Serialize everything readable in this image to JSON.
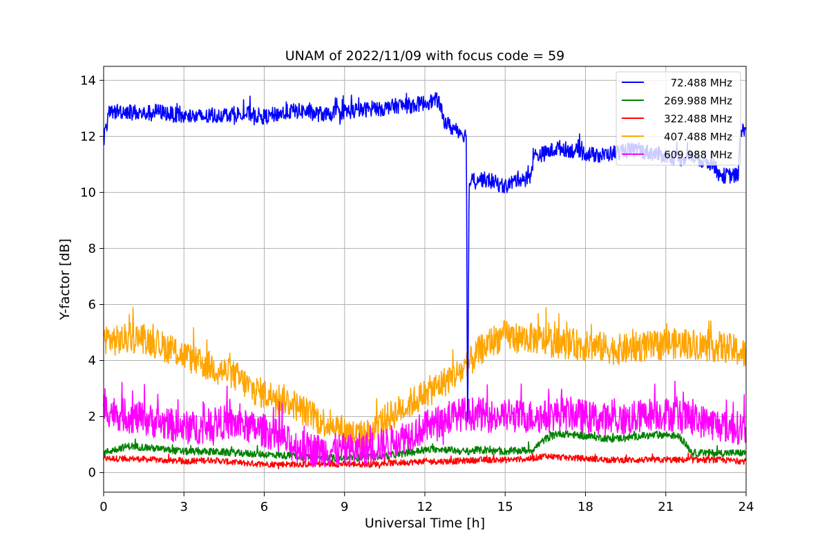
{
  "chart_data": {
    "type": "line",
    "title": "UNAM of 2022/11/09 with focus code = 59",
    "xlabel": "Universal Time [h]",
    "ylabel": "Y-factor [dB]",
    "xlim": [
      0,
      24
    ],
    "ylim": [
      -0.7,
      14.5
    ],
    "xticks": [
      0,
      3,
      6,
      9,
      12,
      15,
      18,
      21,
      24
    ],
    "yticks": [
      0,
      2,
      4,
      6,
      8,
      10,
      12,
      14
    ],
    "grid": true,
    "legend_position": "top-right",
    "series": [
      {
        "name": "72.488 MHz",
        "color": "#0000ff",
        "x": [
          0,
          0.2,
          0.5,
          1,
          1.5,
          2,
          2.5,
          3,
          3.5,
          4,
          4.5,
          5,
          5.5,
          6,
          6.5,
          7,
          7.5,
          8,
          8.5,
          9,
          9.5,
          10,
          10.5,
          11,
          11.5,
          12,
          12.5,
          12.7,
          13,
          13.3,
          13.55,
          13.6,
          13.65,
          13.7,
          14,
          14.5,
          15,
          15.5,
          15.9,
          16.1,
          16.5,
          17,
          17.5,
          18,
          18.5,
          19,
          19.5,
          20,
          20.5,
          21,
          21.5,
          22,
          22.5,
          22.8,
          23,
          23.5,
          23.7,
          23.8,
          24
        ],
        "y": [
          11.9,
          12.8,
          12.9,
          12.9,
          12.8,
          12.9,
          12.8,
          12.7,
          12.7,
          12.7,
          12.8,
          12.8,
          12.8,
          12.7,
          12.8,
          12.9,
          12.9,
          12.8,
          12.8,
          12.9,
          12.9,
          13.0,
          13.0,
          13.1,
          13.1,
          13.2,
          13.3,
          12.6,
          12.3,
          12.2,
          12.0,
          0.8,
          10.3,
          10.4,
          10.5,
          10.4,
          10.2,
          10.5,
          10.5,
          11.3,
          11.4,
          11.6,
          11.5,
          11.4,
          11.3,
          11.4,
          11.5,
          11.5,
          11.4,
          11.3,
          11.2,
          11.3,
          11.1,
          11.0,
          10.6,
          10.6,
          10.6,
          12.1,
          12.4
        ]
      },
      {
        "name": "269.988 MHz",
        "color": "#008000",
        "x": [
          0,
          0.5,
          1,
          1.5,
          2,
          3,
          4,
          5,
          6,
          7,
          8,
          9,
          10,
          11,
          12,
          12.5,
          13,
          13.5,
          14,
          15,
          16,
          16.5,
          17,
          18,
          19,
          20,
          21,
          21.5,
          22,
          23,
          24
        ],
        "y": [
          0.7,
          0.85,
          0.95,
          0.9,
          0.85,
          0.75,
          0.75,
          0.7,
          0.65,
          0.6,
          0.55,
          0.5,
          0.55,
          0.65,
          0.8,
          0.85,
          0.8,
          0.75,
          0.8,
          0.75,
          0.8,
          1.2,
          1.4,
          1.3,
          1.2,
          1.3,
          1.35,
          1.3,
          0.7,
          0.7,
          0.7
        ]
      },
      {
        "name": "322.488 MHz",
        "color": "#ff0000",
        "x": [
          0,
          1,
          2,
          3,
          4,
          5,
          6,
          7,
          8,
          9,
          10,
          11,
          12,
          13,
          14,
          15,
          16,
          16.5,
          17,
          18,
          19,
          20,
          21,
          22,
          23,
          24
        ],
        "y": [
          0.5,
          0.5,
          0.45,
          0.4,
          0.45,
          0.35,
          0.3,
          0.3,
          0.3,
          0.3,
          0.3,
          0.35,
          0.4,
          0.4,
          0.45,
          0.45,
          0.5,
          0.6,
          0.55,
          0.5,
          0.45,
          0.45,
          0.45,
          0.45,
          0.45,
          0.4
        ]
      },
      {
        "name": "407.488 MHz",
        "color": "#ffa500",
        "x": [
          0,
          0.5,
          1,
          1.5,
          2,
          2.5,
          3,
          3.5,
          4,
          4.5,
          5,
          5.5,
          6,
          6.5,
          7,
          7.5,
          8,
          8.5,
          9,
          9.5,
          10,
          10.5,
          11,
          11.5,
          12,
          12.5,
          13,
          13.5,
          14,
          14.5,
          15,
          15.5,
          16,
          16.5,
          17,
          17.5,
          18,
          18.5,
          19,
          19.5,
          20,
          20.5,
          21,
          21.5,
          22,
          22.5,
          23,
          23.5,
          24
        ],
        "y": [
          4.8,
          4.7,
          4.8,
          4.8,
          4.6,
          4.4,
          4.2,
          3.9,
          3.8,
          3.6,
          3.4,
          3.0,
          2.8,
          2.7,
          2.5,
          2.2,
          1.9,
          1.7,
          1.5,
          1.3,
          1.4,
          1.9,
          2.2,
          2.5,
          2.8,
          3.1,
          3.4,
          3.7,
          4.3,
          4.7,
          4.9,
          4.8,
          4.8,
          4.7,
          4.6,
          4.6,
          4.5,
          4.5,
          4.4,
          4.4,
          4.5,
          4.5,
          4.6,
          4.6,
          4.6,
          4.5,
          4.5,
          4.4,
          4.2
        ]
      },
      {
        "name": "609.988 MHz",
        "color": "#ff00ff",
        "x": [
          0,
          0.5,
          1,
          1.5,
          2,
          2.5,
          3,
          3.5,
          4,
          4.5,
          5,
          5.5,
          6,
          6.5,
          7,
          7.5,
          8,
          8.5,
          9,
          9.5,
          10,
          10.5,
          11,
          11.5,
          12,
          12.5,
          13,
          13.5,
          14,
          14.5,
          15,
          15.5,
          16,
          16.5,
          17,
          17.5,
          18,
          18.5,
          19,
          19.5,
          20,
          20.5,
          21,
          21.5,
          22,
          22.5,
          23,
          23.5,
          24
        ],
        "y": [
          2.3,
          2.1,
          2.0,
          1.9,
          1.8,
          1.7,
          1.6,
          1.6,
          1.7,
          1.8,
          1.7,
          1.6,
          1.5,
          1.3,
          1.0,
          0.9,
          0.8,
          0.8,
          0.8,
          0.8,
          0.9,
          1.0,
          1.2,
          1.4,
          1.6,
          1.8,
          2.0,
          2.1,
          2.1,
          2.0,
          2.0,
          2.0,
          2.0,
          2.0,
          2.1,
          2.1,
          2.0,
          1.9,
          1.9,
          1.9,
          2.0,
          2.1,
          2.1,
          2.0,
          1.9,
          1.8,
          1.7,
          1.6,
          1.6
        ]
      }
    ]
  }
}
